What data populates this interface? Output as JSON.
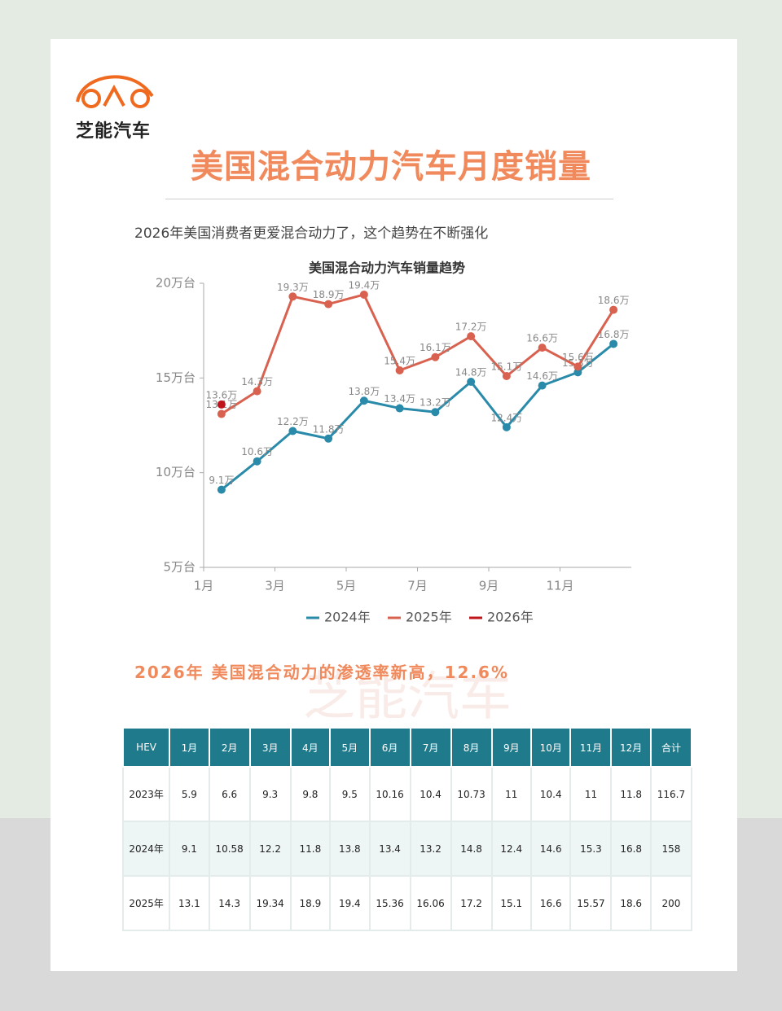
{
  "header": {
    "logo": "芝能汽车",
    "title": "美国混合动力汽车月度销量",
    "subtitle": "2026年美国消费者更爱混合动力了，这个趋势在不断强化"
  },
  "watermark": "芝能汽车",
  "chart_data": {
    "type": "line",
    "title": "美国混合动力汽车销量趋势",
    "categories": [
      "1月",
      null,
      "3月",
      null,
      "5月",
      null,
      "7月",
      null,
      "9月",
      null,
      "11月",
      null
    ],
    "ylim": [
      5,
      20
    ],
    "yticks": [
      {
        "value": 5,
        "label": "5万台"
      },
      {
        "value": 10,
        "label": "10万台"
      },
      {
        "value": 15,
        "label": "15万台"
      },
      {
        "value": 20,
        "label": "20万台"
      }
    ],
    "series": [
      {
        "name": "2024年",
        "color": "#2a8aaa",
        "values": [
          9.1,
          10.6,
          12.2,
          11.8,
          13.8,
          13.4,
          13.2,
          14.8,
          12.4,
          14.6,
          15.3,
          16.8
        ],
        "value_labels": [
          "9.1万",
          "10.6万",
          "12.2万",
          "11.8万",
          "13.8万",
          "13.4万",
          "13.2万",
          "14.8万",
          "12.4万",
          "14.6万",
          "15.3万",
          "16.8万"
        ]
      },
      {
        "name": "2025年",
        "color": "#d9614f",
        "values": [
          13.1,
          14.3,
          19.3,
          18.9,
          19.4,
          15.4,
          16.1,
          17.2,
          15.1,
          16.6,
          15.6,
          18.6
        ],
        "value_labels": [
          "13.1万",
          "14.3万",
          "19.3万",
          "18.9万",
          "19.4万",
          "15.4万",
          "16.1万",
          "17.2万",
          "15.1万",
          "16.6万",
          "15.6万",
          "18.6万"
        ]
      },
      {
        "name": "2026年",
        "color": "#c0141c",
        "values": [
          13.6,
          null,
          null,
          null,
          null,
          null,
          null,
          null,
          null,
          null,
          null,
          null
        ],
        "value_labels": [
          "13.6万",
          null,
          null,
          null,
          null,
          null,
          null,
          null,
          null,
          null,
          null,
          null
        ]
      }
    ]
  },
  "section_title": "2026年 美国混合动力的渗透率新高，12.6%",
  "table": {
    "header": [
      "HEV",
      "1月",
      "2月",
      "3月",
      "4月",
      "5月",
      "6月",
      "7月",
      "8月",
      "9月",
      "10月",
      "11月",
      "12月",
      "合计"
    ],
    "rows": [
      [
        "2023年",
        5.9,
        6.6,
        9.3,
        9.8,
        9.5,
        10.16,
        10.4,
        10.73,
        11,
        10.4,
        11,
        11.8,
        116.7
      ],
      [
        "2024年",
        9.1,
        10.58,
        12.2,
        11.8,
        13.8,
        13.4,
        13.2,
        14.8,
        12.4,
        14.6,
        15.3,
        16.8,
        158
      ],
      [
        "2025年",
        13.1,
        14.3,
        19.34,
        18.9,
        19.4,
        15.36,
        16.06,
        17.2,
        15.1,
        16.6,
        15.57,
        18.6,
        200
      ]
    ]
  }
}
